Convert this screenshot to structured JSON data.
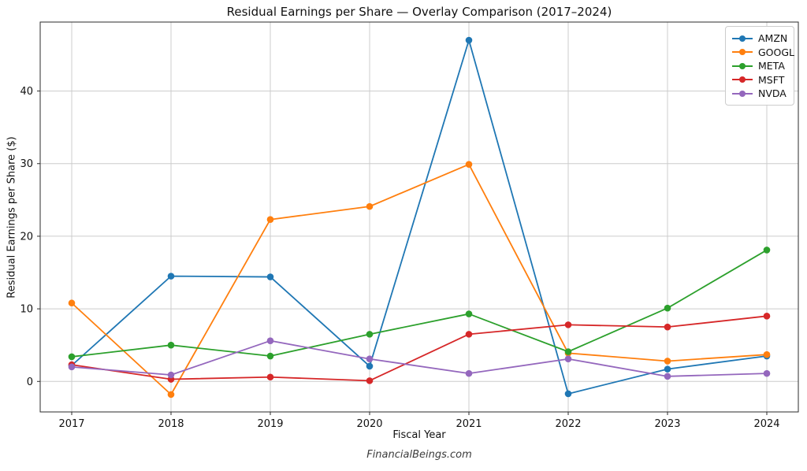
{
  "footer": "FinancialBeings.com",
  "chart_data": {
    "type": "line",
    "title": "Residual Earnings per Share — Overlay Comparison (2017–2024)",
    "xlabel": "Fiscal Year",
    "ylabel": "Residual Earnings per Share ($)",
    "categories": [
      "2017",
      "2018",
      "2019",
      "2020",
      "2021",
      "2022",
      "2023",
      "2024"
    ],
    "yticks": [
      0,
      10,
      20,
      30,
      40
    ],
    "ylim": [
      -4.2,
      49.5
    ],
    "grid": true,
    "grid_color": "#cccccc",
    "frame_color": "#2b2b2b",
    "legend_position": "upper right",
    "series": [
      {
        "name": "AMZN",
        "color": "#1f77b4",
        "values": [
          2.2,
          14.5,
          14.4,
          2.1,
          47.0,
          -1.7,
          1.7,
          3.5
        ]
      },
      {
        "name": "GOOGL",
        "color": "#ff7f0e",
        "values": [
          10.8,
          -1.8,
          22.3,
          24.1,
          29.9,
          3.9,
          2.8,
          3.7
        ]
      },
      {
        "name": "META",
        "color": "#2ca02c",
        "values": [
          3.4,
          5.0,
          3.5,
          6.5,
          9.3,
          4.1,
          10.1,
          18.1
        ]
      },
      {
        "name": "MSFT",
        "color": "#d62728",
        "values": [
          2.3,
          0.3,
          0.6,
          0.1,
          6.5,
          7.8,
          7.5,
          9.0
        ]
      },
      {
        "name": "NVDA",
        "color": "#9467bd",
        "values": [
          2.0,
          0.9,
          5.6,
          3.1,
          1.1,
          3.1,
          0.7,
          1.1
        ]
      }
    ]
  }
}
